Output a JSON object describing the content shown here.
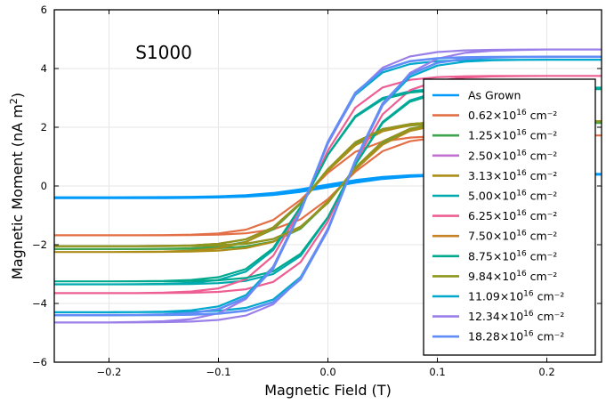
{
  "chart_data": {
    "type": "line",
    "title": "",
    "annotation": "S1000",
    "xlabel": "Magnetic Field (T)",
    "ylabel_main": "Magnetic Moment (nA m",
    "ylabel_sup": "2",
    "ylabel_close": ")",
    "xlim": [
      -0.25,
      0.25
    ],
    "ylim": [
      -6,
      6
    ],
    "xticks": [
      -0.2,
      -0.1,
      0.0,
      0.1,
      0.2
    ],
    "xtick_labels": [
      "−0.2",
      "−0.1",
      "0.0",
      "0.1",
      "0.2"
    ],
    "yticks": [
      -6,
      -4,
      -2,
      0,
      2,
      4,
      6
    ],
    "ytick_labels": [
      "−6",
      "−4",
      "−2",
      "0",
      "2",
      "4",
      "6"
    ],
    "grid": true,
    "legend_position": "bottom-right",
    "series": [
      {
        "name": "As Grown",
        "label_main": "As Grown",
        "label_exp": "",
        "label_unit": "",
        "color": "#009AFA",
        "ms": 0.4,
        "ups": 0.4,
        "mr": 0.02,
        "hc": 0.005,
        "h0": 0.06,
        "width": 3.2
      },
      {
        "name": "0.62×10^16 cm^-2",
        "label_main": "0.62×10",
        "label_exp": "16",
        "label_unit": " cm⁻²",
        "color": "#E36F47",
        "ms": 1.68,
        "ups": 1.72,
        "mr": 0.25,
        "hc": 0.012,
        "h0": 0.045,
        "width": 2.2
      },
      {
        "name": "1.25×10^16 cm^-2",
        "label_main": "1.25×10",
        "label_exp": "16",
        "label_unit": " cm⁻²",
        "color": "#3EA44E",
        "ms": 2.15,
        "ups": 2.15,
        "mr": 0.3,
        "hc": 0.012,
        "h0": 0.045,
        "width": 2.2
      },
      {
        "name": "2.50×10^16 cm^-2",
        "label_main": "2.50×10",
        "label_exp": "16",
        "label_unit": " cm⁻²",
        "color": "#C271D2",
        "ms": 2.05,
        "ups": 2.2,
        "mr": 0.3,
        "hc": 0.012,
        "h0": 0.045,
        "width": 2.2
      },
      {
        "name": "3.13×10^16 cm^-2",
        "label_main": "3.13×10",
        "label_exp": "16",
        "label_unit": " cm⁻²",
        "color": "#AC8D18",
        "ms": 2.25,
        "ups": 2.2,
        "mr": 0.3,
        "hc": 0.012,
        "h0": 0.05,
        "width": 2.2
      },
      {
        "name": "5.00×10^16 cm^-2",
        "label_main": "5.00×10",
        "label_exp": "16",
        "label_unit": " cm⁻²",
        "color": "#00A9AD",
        "ms": 3.35,
        "ups": 3.35,
        "mr": 0.5,
        "hc": 0.015,
        "h0": 0.045,
        "width": 2.2
      },
      {
        "name": "6.25×10^16 cm^-2",
        "label_main": "6.25×10",
        "label_exp": "16",
        "label_unit": " cm⁻²",
        "color": "#ED5E93",
        "ms": 3.65,
        "ups": 3.75,
        "mr": 0.5,
        "hc": 0.015,
        "h0": 0.045,
        "width": 2.2
      },
      {
        "name": "7.50×10^16 cm^-2",
        "label_main": "7.50×10",
        "label_exp": "16",
        "label_unit": " cm⁻²",
        "color": "#C68225",
        "ms": 2.05,
        "ups": 2.2,
        "mr": 0.3,
        "hc": 0.012,
        "h0": 0.045,
        "width": 2.2
      },
      {
        "name": "8.75×10^16 cm^-2",
        "label_main": "8.75×10",
        "label_exp": "16",
        "label_unit": " cm⁻²",
        "color": "#00A98D",
        "ms": 3.25,
        "ups": 3.3,
        "mr": 0.5,
        "hc": 0.015,
        "h0": 0.045,
        "width": 2.2
      },
      {
        "name": "9.84×10^16 cm^-2",
        "label_main": "9.84×10",
        "label_exp": "16",
        "label_unit": " cm⁻²",
        "color": "#8E971D",
        "ms": 2.05,
        "ups": 2.2,
        "mr": 0.3,
        "hc": 0.012,
        "h0": 0.045,
        "width": 2.2
      },
      {
        "name": "11.09×10^16 cm^-2",
        "label_main": "11.09×10",
        "label_exp": "16",
        "label_unit": " cm⁻²",
        "color": "#00A8CB",
        "ms": 4.3,
        "ups": 4.3,
        "mr": 0.7,
        "hc": 0.016,
        "h0": 0.045,
        "width": 2.2
      },
      {
        "name": "12.34×10^16 cm^-2",
        "label_main": "12.34×10",
        "label_exp": "16",
        "label_unit": " cm⁻²",
        "color": "#9B7FE9",
        "ms": 4.65,
        "ups": 4.65,
        "mr": 0.7,
        "hc": 0.016,
        "h0": 0.05,
        "width": 2.2
      },
      {
        "name": "18.28×10^16 cm^-2",
        "label_main": "18.28×10",
        "label_exp": "16",
        "label_unit": " cm⁻²",
        "color": "#618DF6",
        "ms": 4.4,
        "ups": 4.4,
        "mr": 0.7,
        "hc": 0.016,
        "h0": 0.045,
        "width": 2.6
      }
    ]
  }
}
